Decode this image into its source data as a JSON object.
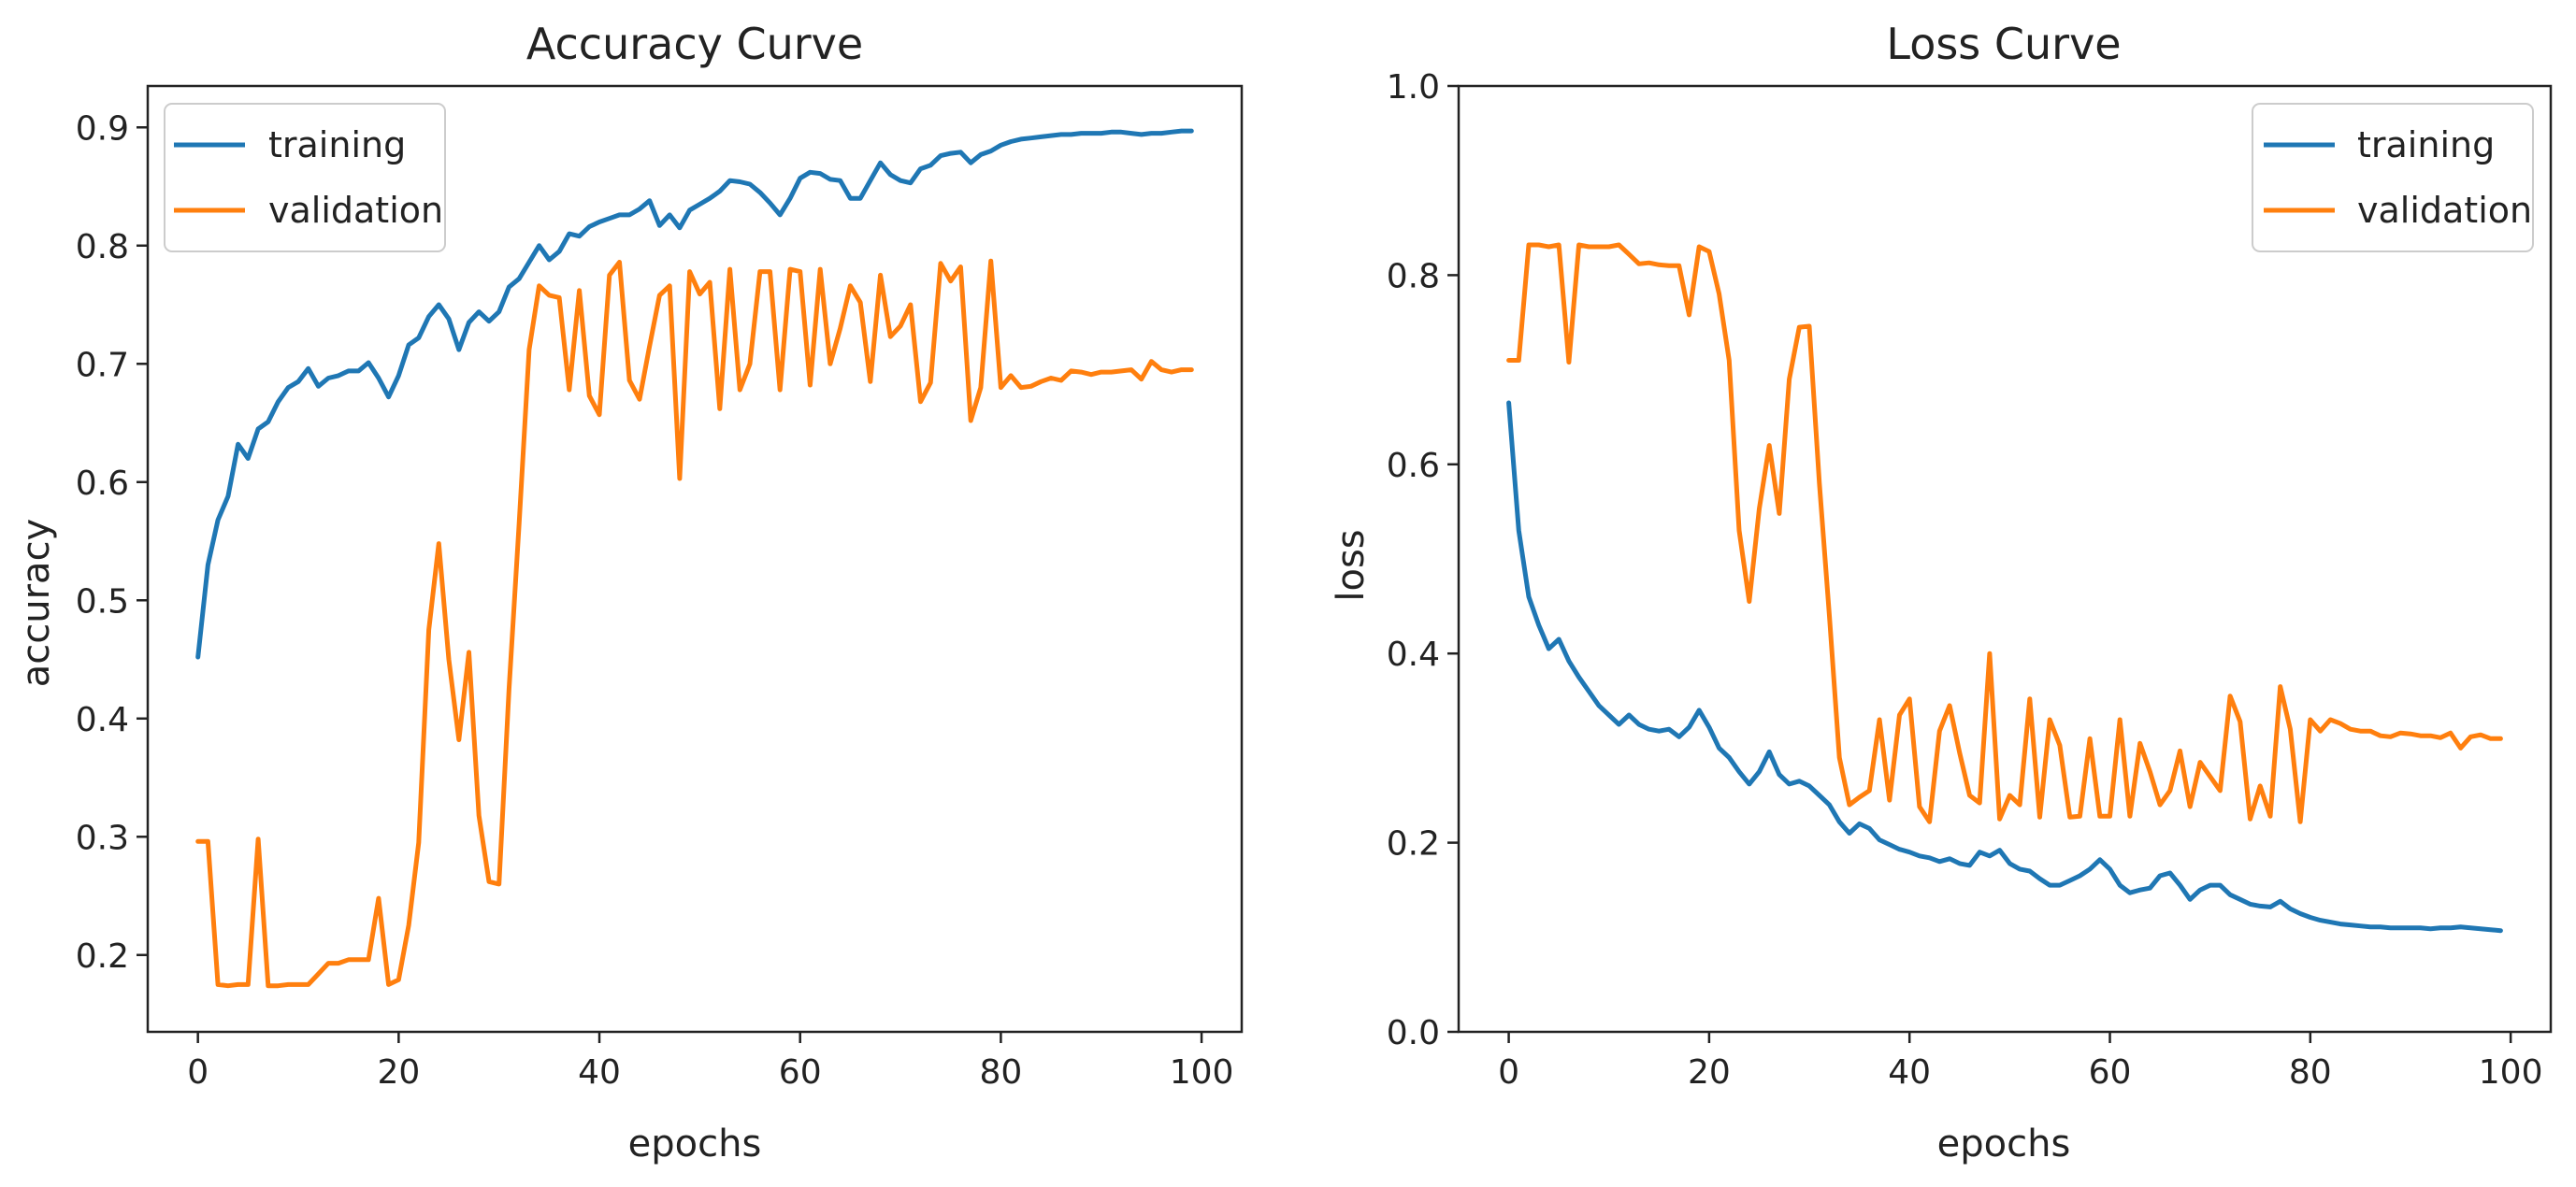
{
  "colors": {
    "training": "#1f77b4",
    "validation": "#ff7f0e",
    "axis": "#222222"
  },
  "chart_data": [
    {
      "type": "line",
      "title": "Accuracy Curve",
      "xlabel": "epochs",
      "ylabel": "accuracy",
      "xlim": [
        -5,
        104
      ],
      "ylim": [
        0.135,
        0.935
      ],
      "xticks": [
        0,
        20,
        40,
        60,
        80,
        100
      ],
      "yticks": [
        0.2,
        0.3,
        0.4,
        0.5,
        0.6,
        0.7,
        0.8,
        0.9
      ],
      "legend_position": "top-left",
      "series": [
        {
          "name": "training",
          "values": [
            0.452,
            0.53,
            0.568,
            0.588,
            0.632,
            0.62,
            0.645,
            0.651,
            0.668,
            0.68,
            0.685,
            0.696,
            0.681,
            0.688,
            0.69,
            0.694,
            0.694,
            0.701,
            0.688,
            0.672,
            0.69,
            0.716,
            0.722,
            0.74,
            0.75,
            0.738,
            0.712,
            0.735,
            0.744,
            0.736,
            0.744,
            0.765,
            0.772,
            0.786,
            0.8,
            0.788,
            0.795,
            0.81,
            0.808,
            0.816,
            0.82,
            0.823,
            0.826,
            0.826,
            0.831,
            0.838,
            0.817,
            0.826,
            0.815,
            0.83,
            0.835,
            0.84,
            0.846,
            0.855,
            0.854,
            0.852,
            0.845,
            0.836,
            0.826,
            0.84,
            0.857,
            0.862,
            0.861,
            0.856,
            0.855,
            0.84,
            0.84,
            0.855,
            0.87,
            0.86,
            0.855,
            0.853,
            0.865,
            0.868,
            0.876,
            0.878,
            0.879,
            0.87,
            0.877,
            0.88,
            0.885,
            0.888,
            0.89,
            0.891,
            0.892,
            0.893,
            0.894,
            0.894,
            0.895,
            0.895,
            0.895,
            0.896,
            0.896,
            0.895,
            0.894,
            0.895,
            0.895,
            0.896,
            0.897,
            0.897
          ]
        },
        {
          "name": "validation",
          "values": [
            0.296,
            0.296,
            0.175,
            0.174,
            0.175,
            0.175,
            0.298,
            0.174,
            0.174,
            0.175,
            0.175,
            0.175,
            0.184,
            0.193,
            0.193,
            0.196,
            0.196,
            0.196,
            0.248,
            0.175,
            0.179,
            0.225,
            0.295,
            0.475,
            0.548,
            0.45,
            0.382,
            0.456,
            0.318,
            0.262,
            0.26,
            0.425,
            0.565,
            0.712,
            0.766,
            0.758,
            0.756,
            0.678,
            0.762,
            0.673,
            0.657,
            0.775,
            0.786,
            0.686,
            0.67,
            0.715,
            0.758,
            0.766,
            0.603,
            0.778,
            0.759,
            0.769,
            0.662,
            0.78,
            0.678,
            0.7,
            0.778,
            0.778,
            0.678,
            0.78,
            0.778,
            0.682,
            0.78,
            0.7,
            0.73,
            0.766,
            0.752,
            0.685,
            0.775,
            0.723,
            0.732,
            0.75,
            0.668,
            0.684,
            0.785,
            0.77,
            0.782,
            0.652,
            0.68,
            0.787,
            0.68,
            0.69,
            0.68,
            0.681,
            0.685,
            0.688,
            0.686,
            0.694,
            0.693,
            0.691,
            0.693,
            0.693,
            0.694,
            0.695,
            0.687,
            0.702,
            0.695,
            0.693,
            0.695,
            0.695
          ]
        }
      ]
    },
    {
      "type": "line",
      "title": "Loss Curve",
      "xlabel": "epochs",
      "ylabel": "loss",
      "xlim": [
        -5,
        104
      ],
      "ylim": [
        0.0,
        1.0
      ],
      "xticks": [
        0,
        20,
        40,
        60,
        80,
        100
      ],
      "yticks": [
        0.0,
        0.2,
        0.4,
        0.6,
        0.8,
        1.0
      ],
      "legend_position": "top-right",
      "series": [
        {
          "name": "training",
          "values": [
            0.665,
            0.53,
            0.46,
            0.43,
            0.405,
            0.415,
            0.392,
            0.375,
            0.36,
            0.345,
            0.335,
            0.325,
            0.335,
            0.325,
            0.32,
            0.318,
            0.32,
            0.312,
            0.322,
            0.34,
            0.322,
            0.3,
            0.29,
            0.275,
            0.262,
            0.275,
            0.296,
            0.272,
            0.262,
            0.265,
            0.26,
            0.25,
            0.24,
            0.222,
            0.21,
            0.22,
            0.215,
            0.203,
            0.198,
            0.193,
            0.19,
            0.186,
            0.184,
            0.18,
            0.183,
            0.178,
            0.176,
            0.19,
            0.186,
            0.192,
            0.178,
            0.172,
            0.17,
            0.162,
            0.155,
            0.155,
            0.16,
            0.165,
            0.172,
            0.182,
            0.172,
            0.155,
            0.147,
            0.15,
            0.152,
            0.165,
            0.168,
            0.155,
            0.14,
            0.15,
            0.155,
            0.155,
            0.145,
            0.14,
            0.135,
            0.133,
            0.132,
            0.138,
            0.13,
            0.125,
            0.121,
            0.118,
            0.116,
            0.114,
            0.113,
            0.112,
            0.111,
            0.111,
            0.11,
            0.11,
            0.11,
            0.11,
            0.109,
            0.11,
            0.11,
            0.111,
            0.11,
            0.109,
            0.108,
            0.107
          ]
        },
        {
          "name": "validation",
          "values": [
            0.71,
            0.71,
            0.832,
            0.832,
            0.83,
            0.832,
            0.708,
            0.832,
            0.83,
            0.83,
            0.83,
            0.832,
            0.822,
            0.812,
            0.813,
            0.811,
            0.81,
            0.81,
            0.758,
            0.83,
            0.825,
            0.78,
            0.71,
            0.53,
            0.455,
            0.553,
            0.62,
            0.548,
            0.69,
            0.745,
            0.746,
            0.58,
            0.44,
            0.29,
            0.24,
            0.248,
            0.255,
            0.33,
            0.245,
            0.335,
            0.352,
            0.238,
            0.222,
            0.318,
            0.345,
            0.295,
            0.25,
            0.242,
            0.4,
            0.225,
            0.25,
            0.24,
            0.352,
            0.227,
            0.33,
            0.303,
            0.227,
            0.228,
            0.31,
            0.228,
            0.228,
            0.33,
            0.228,
            0.305,
            0.275,
            0.24,
            0.255,
            0.297,
            0.238,
            0.285,
            0.27,
            0.255,
            0.355,
            0.328,
            0.225,
            0.26,
            0.228,
            0.365,
            0.32,
            0.222,
            0.33,
            0.318,
            0.33,
            0.326,
            0.32,
            0.318,
            0.318,
            0.313,
            0.312,
            0.316,
            0.315,
            0.313,
            0.313,
            0.311,
            0.316,
            0.3,
            0.312,
            0.314,
            0.31,
            0.31
          ]
        }
      ]
    }
  ]
}
